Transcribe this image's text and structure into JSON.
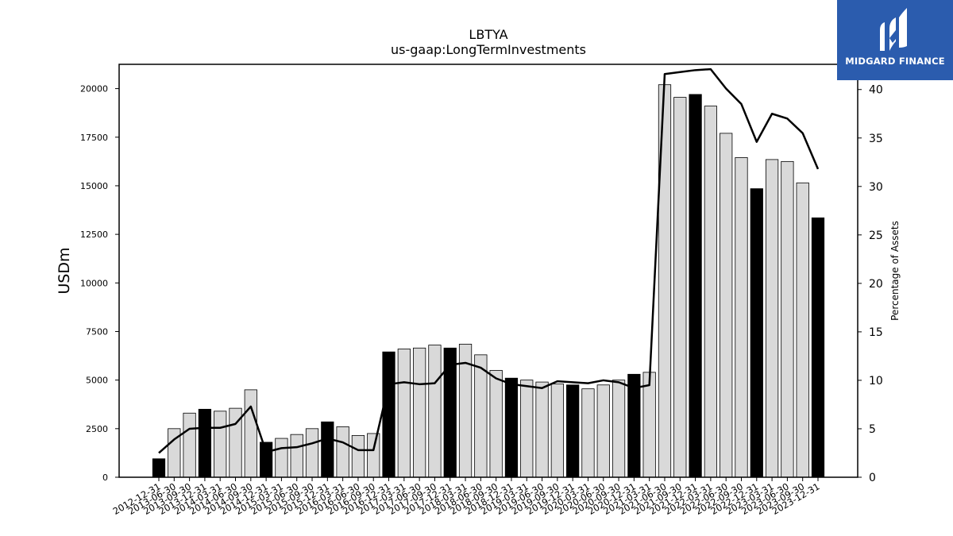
{
  "chart_data": {
    "type": "bar",
    "title": "LBTYA",
    "subtitle": "us-gaap:LongTermInvestments",
    "ylabel": "USDm",
    "y2label": "Percentage of Assets",
    "ylim": [
      0,
      21250
    ],
    "y2lim": [
      0,
      42.6
    ],
    "yticks": [
      0,
      2500,
      5000,
      7500,
      10000,
      12500,
      15000,
      17500,
      20000
    ],
    "y2ticks": [
      0,
      5,
      10,
      15,
      20,
      25,
      30,
      35,
      40
    ],
    "categories": [
      "2012-12-31",
      "2013-06-30",
      "2013-09-30",
      "2013-12-31",
      "2014-03-31",
      "2014-06-30",
      "2014-09-30",
      "2014-12-31",
      "2015-03-31",
      "2015-06-30",
      "2015-09-30",
      "2015-12-31",
      "2016-03-31",
      "2016-06-30",
      "2016-09-30",
      "2016-12-31",
      "2017-03-31",
      "2017-06-30",
      "2017-09-30",
      "2017-12-31",
      "2018-03-31",
      "2018-06-30",
      "2018-09-30",
      "2018-12-31",
      "2019-03-31",
      "2019-06-30",
      "2019-09-30",
      "2019-12-31",
      "2020-03-31",
      "2020-06-30",
      "2020-09-30",
      "2020-12-31",
      "2021-03-31",
      "2021-06-30",
      "2021-09-30",
      "2021-12-31",
      "2022-03-31",
      "2022-06-30",
      "2022-09-30",
      "2022-12-31",
      "2023-03-31",
      "2023-06-30",
      "2023-09-30",
      "2023-12-31"
    ],
    "series": [
      {
        "kind": "bar",
        "values": [
          950,
          2500,
          3300,
          3500,
          3400,
          3550,
          4500,
          1800,
          2000,
          2200,
          2500,
          2850,
          2600,
          2150,
          2250,
          6450,
          6600,
          6650,
          6800,
          6650,
          6850,
          6300,
          5500,
          5100,
          5000,
          4900,
          4800,
          4750,
          4550,
          4750,
          5000,
          5300,
          5400,
          20200,
          19550,
          19700,
          19100,
          17700,
          16450,
          14850,
          16350,
          16250,
          15150,
          13350
        ],
        "annual_flags": [
          true,
          false,
          false,
          true,
          false,
          false,
          false,
          true,
          false,
          false,
          false,
          true,
          false,
          false,
          false,
          true,
          false,
          false,
          false,
          true,
          false,
          false,
          false,
          true,
          false,
          false,
          false,
          true,
          false,
          false,
          false,
          true,
          false,
          false,
          false,
          true,
          false,
          false,
          false,
          true,
          false,
          false,
          false,
          true
        ],
        "annual_color": "#000000",
        "quarter_color": "#d9d9d9"
      },
      {
        "kind": "line",
        "axis": "right",
        "color": "#000000",
        "values": [
          2.5,
          3.9,
          5.0,
          5.1,
          5.1,
          5.5,
          7.3,
          2.6,
          3.0,
          3.1,
          3.5,
          4.0,
          3.6,
          2.8,
          2.8,
          9.6,
          9.8,
          9.6,
          9.7,
          11.6,
          11.8,
          11.3,
          10.2,
          9.6,
          9.4,
          9.2,
          9.9,
          9.8,
          9.7,
          10.0,
          9.8,
          9.2,
          9.5,
          41.6,
          41.8,
          42.0,
          42.1,
          40.1,
          38.5,
          34.6,
          37.5,
          37.0,
          35.5,
          31.8
        ]
      }
    ]
  },
  "logo": {
    "text": "MIDGARD FINANCE",
    "bg": "#2b5cae"
  }
}
